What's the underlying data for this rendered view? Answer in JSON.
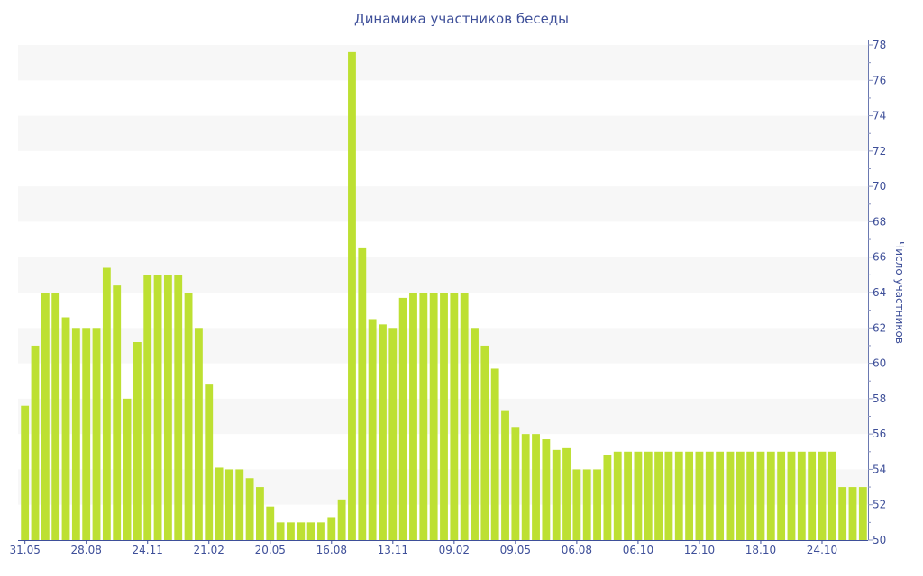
{
  "chart_data": {
    "type": "bar",
    "title": "Динамика участников беседы",
    "ylabel": "Число участников",
    "xlabel": "",
    "ylim": [
      50,
      78
    ],
    "yticks": [
      50,
      52,
      54,
      56,
      58,
      60,
      62,
      64,
      66,
      68,
      70,
      72,
      74,
      76,
      78
    ],
    "y_axis_position": "right",
    "grid": "alternating horizontal bands",
    "bar_color": "#bde032",
    "text_color": "#3e4f99",
    "xtick_labels": [
      {
        "bar_index": 0,
        "label": "31.05"
      },
      {
        "bar_index": 6,
        "label": "28.08"
      },
      {
        "bar_index": 12,
        "label": "24.11"
      },
      {
        "bar_index": 18,
        "label": "21.02"
      },
      {
        "bar_index": 24,
        "label": "20.05"
      },
      {
        "bar_index": 30,
        "label": "16.08"
      },
      {
        "bar_index": 36,
        "label": "13.11"
      },
      {
        "bar_index": 42,
        "label": "09.02"
      },
      {
        "bar_index": 48,
        "label": "09.05"
      },
      {
        "bar_index": 54,
        "label": "06.08"
      },
      {
        "bar_index": 60,
        "label": "06.10"
      },
      {
        "bar_index": 66,
        "label": "12.10"
      },
      {
        "bar_index": 72,
        "label": "18.10"
      },
      {
        "bar_index": 78,
        "label": "24.10"
      }
    ],
    "values": [
      57.6,
      61,
      64,
      64,
      62.6,
      62,
      62,
      62,
      65.4,
      64.4,
      58,
      61.2,
      65,
      65,
      65,
      65,
      64,
      62,
      58.8,
      54.1,
      54,
      54,
      53.5,
      53,
      51.9,
      51,
      51,
      51,
      51,
      51,
      51.3,
      52.3,
      77.6,
      66.5,
      62.5,
      62.2,
      62,
      63.7,
      64,
      64,
      64,
      64,
      64,
      64,
      62,
      61,
      59.7,
      57.3,
      56.4,
      56,
      56,
      55.7,
      55.1,
      55.2,
      54,
      54,
      54,
      54.8,
      55,
      55,
      55,
      55,
      55,
      55,
      55,
      55,
      55,
      55,
      55,
      55,
      55,
      55,
      55,
      55,
      55,
      55,
      55,
      55,
      55,
      55,
      53,
      53,
      53
    ]
  }
}
